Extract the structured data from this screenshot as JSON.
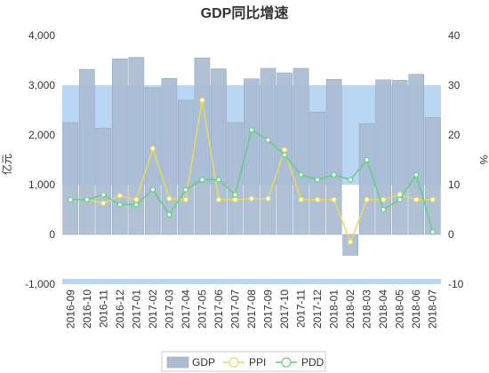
{
  "chart_data": {
    "type": "bar",
    "title": "GDP同比增速",
    "ylabel_left": "亿元",
    "ylabel_right": "%",
    "ylim_left": [
      -1000,
      4000
    ],
    "yticks_left": [
      "4,000",
      "3,000",
      "2,000",
      "1,000",
      "0",
      "-1,000"
    ],
    "ylim_right": [
      -10,
      40
    ],
    "yticks_right": [
      "40",
      "30",
      "20",
      "10",
      "0",
      "-10"
    ],
    "categories": [
      "2016-09",
      "2016-10",
      "2016-11",
      "2016-12",
      "2017-01",
      "2017-02",
      "2017-03",
      "2017-04",
      "2017-05",
      "2017-06",
      "2017-07",
      "2017-08",
      "2017-09",
      "2017-10",
      "2017-11",
      "2017-12",
      "2018-01",
      "2018-02",
      "2018-03",
      "2018-04",
      "2018-05",
      "2018-06",
      "2018-07"
    ],
    "grid": false,
    "legend_position": "bottom-center",
    "series": [
      {
        "name": "GDP",
        "type": "bar",
        "axis": "left",
        "values": [
          2250,
          3320,
          2140,
          3530,
          3560,
          2950,
          3140,
          2700,
          3550,
          3330,
          2250,
          3130,
          3340,
          3250,
          3340,
          2460,
          3120,
          -420,
          2230,
          3110,
          3100,
          3220,
          2350
        ]
      },
      {
        "name": "PPI",
        "type": "line",
        "axis": "right",
        "values": [
          7,
          7,
          6.3,
          7.8,
          7,
          17.3,
          7.2,
          7,
          27,
          7,
          7,
          7.2,
          7.2,
          17,
          7,
          7,
          7,
          -1.5,
          7,
          7,
          8,
          7,
          7
        ]
      },
      {
        "name": "PDD",
        "type": "line",
        "axis": "right",
        "values": [
          7,
          7,
          8,
          6,
          6,
          9,
          4,
          9,
          11,
          11,
          8,
          21,
          19,
          16,
          12,
          11,
          12,
          11,
          15,
          5,
          7,
          12,
          0.5
        ]
      }
    ],
    "colors": {
      "bar": "#a9bcd2",
      "bar_edge": "#94a9c0",
      "band": "#b9d6f5",
      "ppi": "#e6dc5a",
      "pdd": "#63cf7f"
    }
  }
}
